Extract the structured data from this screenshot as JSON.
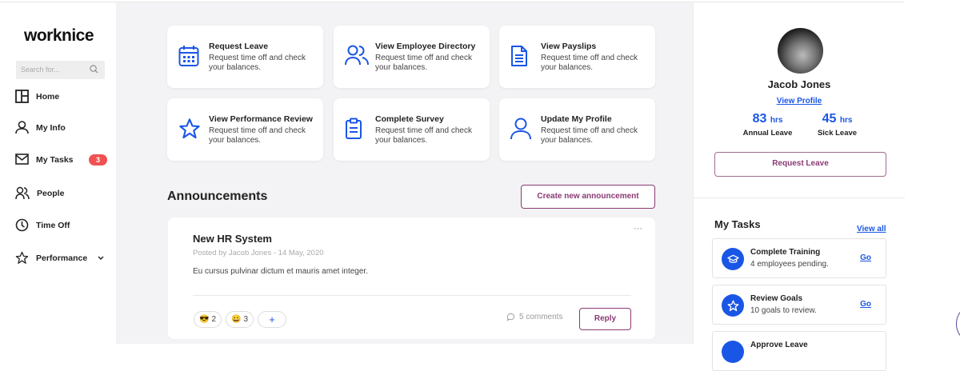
{
  "app": {
    "logo": "worknice"
  },
  "sidebar": {
    "search_placeholder": "Search for...",
    "items": [
      {
        "label": "Home",
        "icon": "layout-icon"
      },
      {
        "label": "My Info",
        "icon": "user-icon"
      },
      {
        "label": "My Tasks",
        "icon": "mail-icon",
        "badge": "3"
      },
      {
        "label": "People",
        "icon": "users-icon"
      },
      {
        "label": "Time Off",
        "icon": "clock-icon"
      },
      {
        "label": "Performance",
        "icon": "star-icon"
      }
    ]
  },
  "quick_actions": [
    {
      "title": "Request Leave",
      "desc": "Request time off and check your balances.",
      "icon": "calendar-icon"
    },
    {
      "title": "View Employee Directory",
      "desc": "Request time off and check your balances.",
      "icon": "users-icon"
    },
    {
      "title": "View Payslips",
      "desc": "Request time off and check your balances.",
      "icon": "document-icon"
    },
    {
      "title": "View Performance Review",
      "desc": "Request time off and check your balances.",
      "icon": "star-icon"
    },
    {
      "title": "Complete Survey",
      "desc": "Request time off and check your balances.",
      "icon": "clipboard-icon"
    },
    {
      "title": "Update My Profile",
      "desc": "Request time off and check your balances.",
      "icon": "user-icon"
    }
  ],
  "announcements": {
    "heading": "Announcements",
    "create_label": "Create new announcement",
    "post": {
      "title": "New HR System",
      "meta": "Posted by Jacob Jones -  14 May, 2020",
      "body": "Eu cursus pulvinar dictum et mauris amet integer.",
      "reactions": [
        {
          "emoji": "😎",
          "count": "2"
        },
        {
          "emoji": "😀",
          "count": "3"
        }
      ],
      "add_reaction": "+",
      "comments": "5 comments",
      "reply_label": "Reply",
      "more": "···"
    }
  },
  "profile": {
    "name": "Jacob Jones",
    "view_profile": "View Profile",
    "annual": {
      "value": "83",
      "unit": "hrs",
      "label": "Annual Leave"
    },
    "sick": {
      "value": "45",
      "unit": "hrs",
      "label": "Sick Leave"
    },
    "request_label": "Request Leave"
  },
  "tasks": {
    "heading": "My Tasks",
    "view_all": "View all",
    "items": [
      {
        "title": "Complete Training",
        "desc": "4 employees pending.",
        "go": "Go",
        "icon": "graduation-cap-icon"
      },
      {
        "title": "Review Goals",
        "desc": "10 goals to review.",
        "go": "Go",
        "icon": "star-icon"
      },
      {
        "title": "Approve Leave",
        "desc": "",
        "go": "",
        "icon": "calendar-icon"
      }
    ]
  },
  "colors": {
    "accent": "#1a56e6",
    "brand": "#8a3a73",
    "badge": "#f05252"
  }
}
